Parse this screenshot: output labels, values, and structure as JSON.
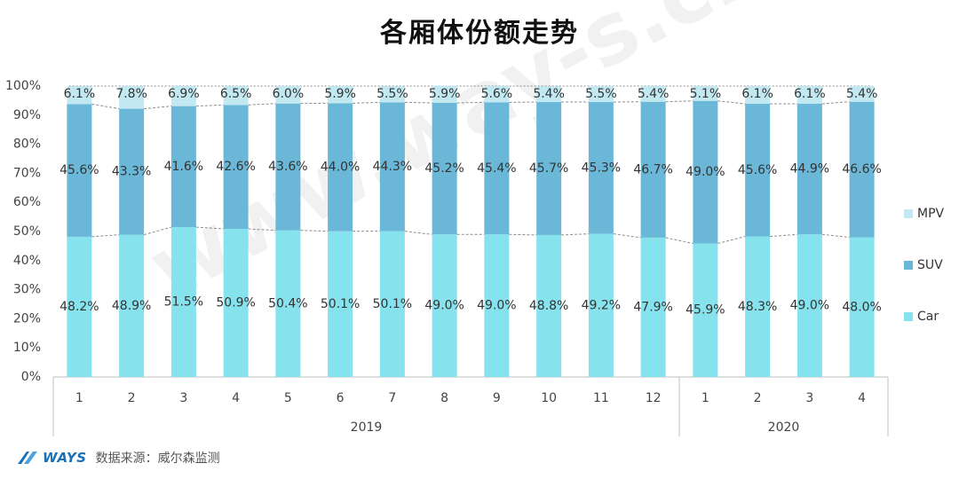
{
  "title": "各厢体份额走势",
  "watermark": "www.way-s.cn",
  "source": {
    "brand": "WAYS",
    "text": "数据来源：威尔森监测"
  },
  "colors": {
    "Car": "#86e3ee",
    "SUV": "#6ab7d8",
    "MPV": "#c2e8f1",
    "axis": "#bfbfbf",
    "connector": "#8c8c8c"
  },
  "chart_data": {
    "type": "bar",
    "stacked": true,
    "percent": true,
    "categories": [
      "1",
      "2",
      "3",
      "4",
      "5",
      "6",
      "7",
      "8",
      "9",
      "10",
      "11",
      "12",
      "1",
      "2",
      "3",
      "4"
    ],
    "groups": [
      {
        "label": "2019",
        "count": 12
      },
      {
        "label": "2020",
        "count": 4
      }
    ],
    "ylim": [
      0,
      100
    ],
    "yticks": [
      "0%",
      "10%",
      "20%",
      "30%",
      "40%",
      "50%",
      "60%",
      "70%",
      "80%",
      "90%",
      "100%"
    ],
    "legend_position": "right",
    "series": [
      {
        "name": "Car",
        "values": [
          48.2,
          48.9,
          51.5,
          50.9,
          50.4,
          50.1,
          50.1,
          49.0,
          49.0,
          48.8,
          49.2,
          47.9,
          45.9,
          48.3,
          49.0,
          48.0
        ],
        "labels": [
          "48.2%",
          "48.9%",
          "51.5%",
          "50.9%",
          "50.4%",
          "50.1%",
          "50.1%",
          "49.0%",
          "49.0%",
          "48.8%",
          "49.2%",
          "47.9%",
          "45.9%",
          "48.3%",
          "49.0%",
          "48.0%"
        ]
      },
      {
        "name": "SUV",
        "values": [
          45.6,
          43.3,
          41.6,
          42.6,
          43.6,
          44.0,
          44.3,
          45.2,
          45.4,
          45.7,
          45.3,
          46.7,
          49.0,
          45.6,
          44.9,
          46.6
        ],
        "labels": [
          "45.6%",
          "43.3%",
          "41.6%",
          "42.6%",
          "43.6%",
          "44.0%",
          "44.3%",
          "45.2%",
          "45.4%",
          "45.7%",
          "45.3%",
          "46.7%",
          "49.0%",
          "45.6%",
          "44.9%",
          "46.6%"
        ]
      },
      {
        "name": "MPV",
        "values": [
          6.1,
          7.8,
          6.9,
          6.5,
          6.0,
          5.9,
          5.5,
          5.9,
          5.6,
          5.4,
          5.5,
          5.4,
          5.1,
          6.1,
          6.1,
          5.4
        ],
        "labels": [
          "6.1%",
          "7.8%",
          "6.9%",
          "6.5%",
          "6.0%",
          "5.9%",
          "5.5%",
          "5.9%",
          "5.6%",
          "5.4%",
          "5.5%",
          "5.4%",
          "5.1%",
          "6.1%",
          "6.1%",
          "5.4%"
        ]
      }
    ]
  }
}
